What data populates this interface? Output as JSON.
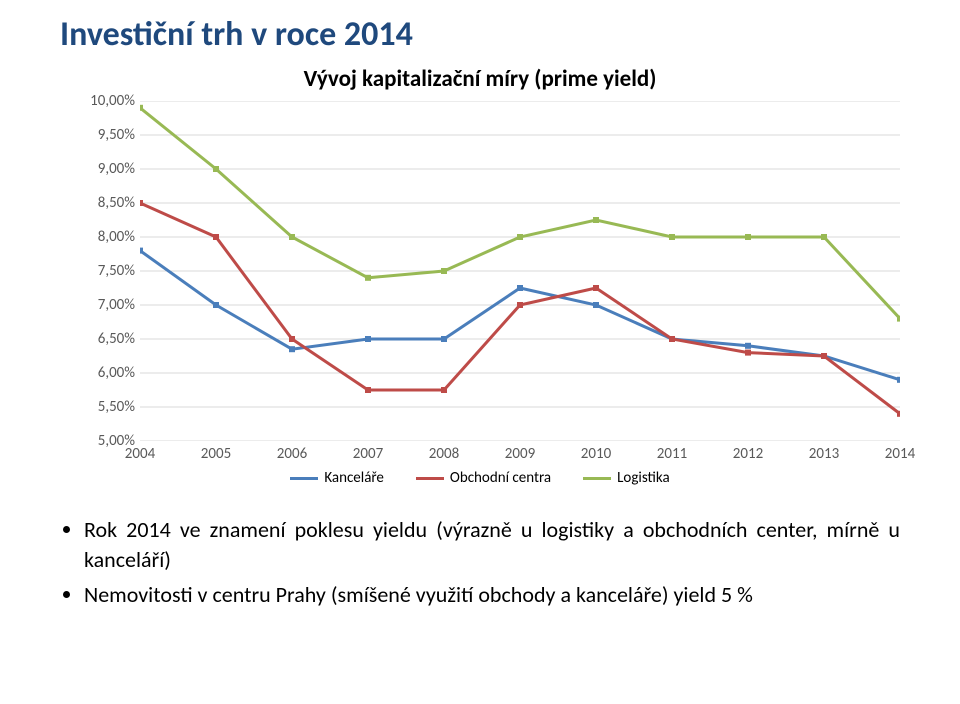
{
  "title": "Investiční trh v roce 2014",
  "chart": {
    "type": "line",
    "title": "Vývoj kapitalizační míry (prime yield)",
    "background_color": "#ffffff",
    "grid_color": "#d9d9d9",
    "axis_label_color": "#595959",
    "axis_label_fontsize": 15,
    "title_fontsize": 23,
    "line_width": 3,
    "marker_size": 6,
    "marker_style": "square",
    "x_categories": [
      "2004",
      "2005",
      "2006",
      "2007",
      "2008",
      "2009",
      "2010",
      "2011",
      "2012",
      "2013",
      "2014"
    ],
    "y_min": 5.0,
    "y_max": 10.0,
    "y_tick_step": 0.5,
    "y_tick_labels": [
      "5,00%",
      "5,50%",
      "6,00%",
      "6,50%",
      "7,00%",
      "7,50%",
      "8,00%",
      "8,50%",
      "9,00%",
      "9,50%",
      "10,00%"
    ],
    "series": [
      {
        "name": "Kanceláře",
        "color": "#4a7ebb",
        "data": [
          7.8,
          7.0,
          6.35,
          6.5,
          6.5,
          7.25,
          7.0,
          6.5,
          6.4,
          6.25,
          5.9
        ]
      },
      {
        "name": "Obchodní centra",
        "color": "#be4b48",
        "data": [
          8.5,
          8.0,
          6.5,
          5.75,
          5.75,
          7.0,
          7.25,
          6.5,
          6.3,
          6.25,
          5.4
        ]
      },
      {
        "name": "Logistika",
        "color": "#98b954",
        "data": [
          9.9,
          9.0,
          8.0,
          7.4,
          7.5,
          8.0,
          8.25,
          8.0,
          8.0,
          8.0,
          6.8
        ]
      }
    ],
    "legend": {
      "position": "bottom-center",
      "items": [
        "Kanceláře",
        "Obchodní centra",
        "Logistika"
      ]
    }
  },
  "bullets": [
    "Rok 2014 ve znamení poklesu yieldu (výrazně u logistiky a obchodních center, mírně u kanceláří)",
    "Nemovitosti v centru Prahy (smíšené využití obchody a kanceláře) yield 5 %"
  ]
}
